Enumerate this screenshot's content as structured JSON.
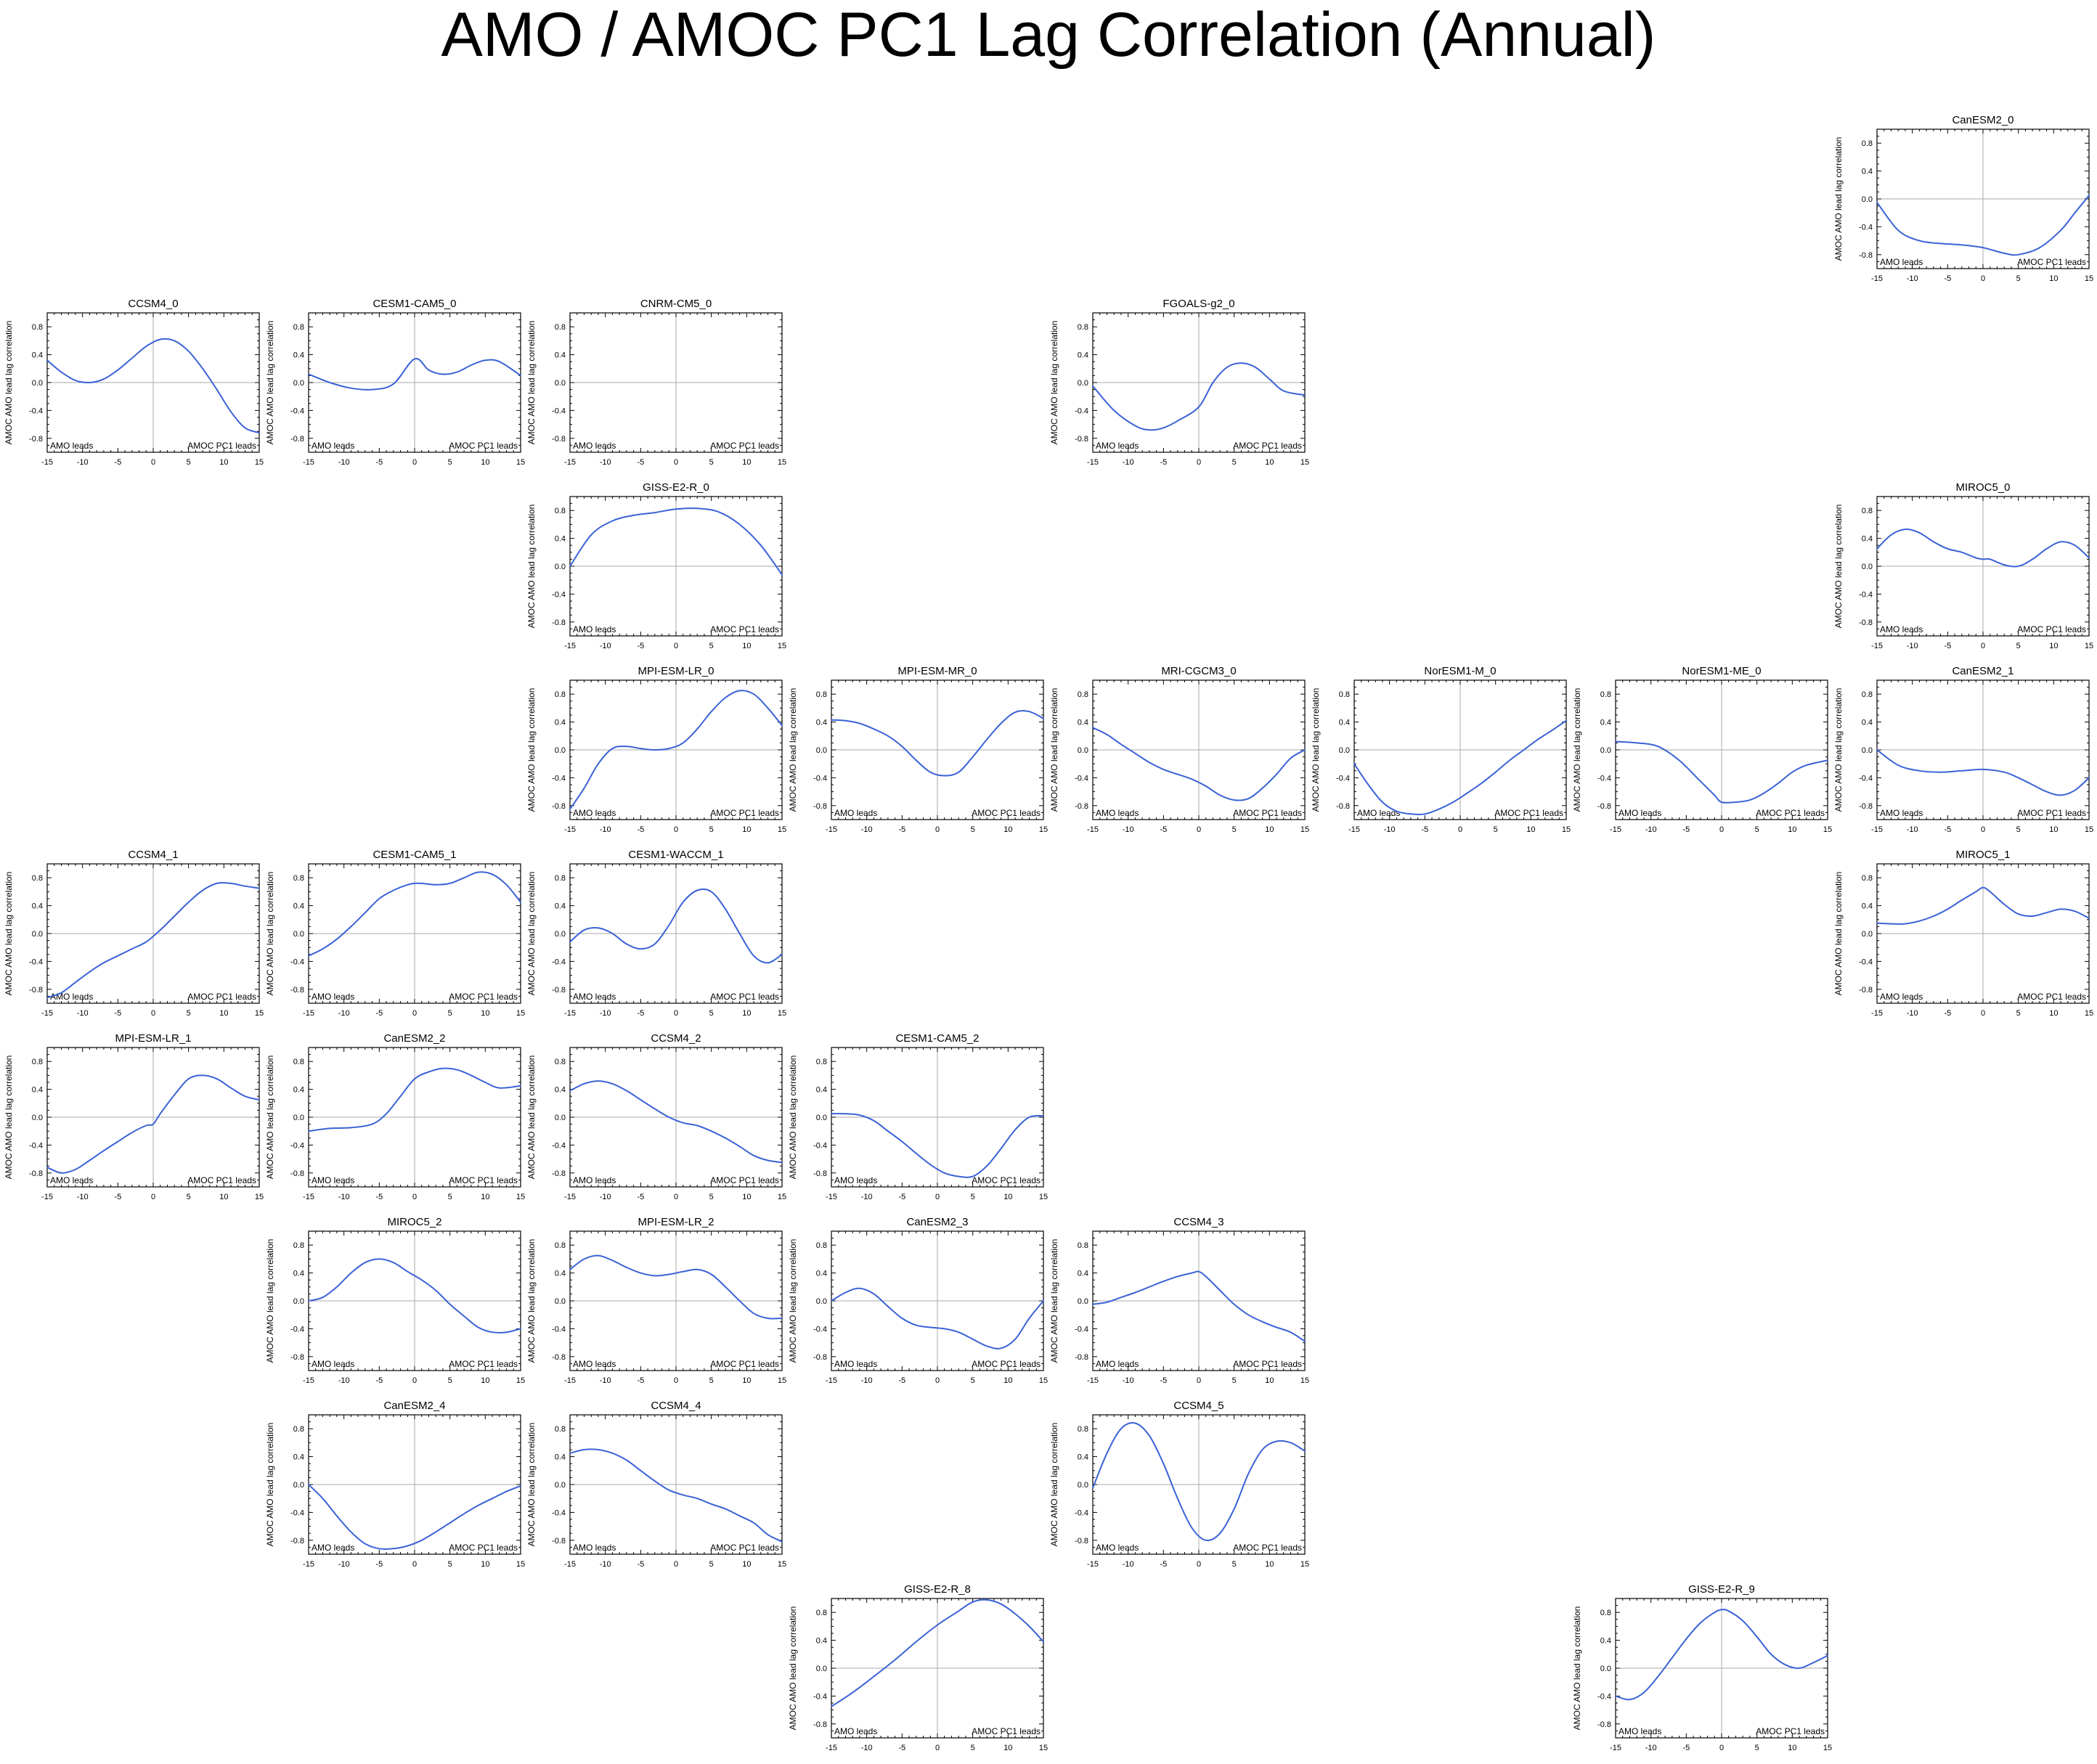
{
  "title": "AMO / AMOC PC1 Lag Correlation (Annual)",
  "chart_data": {
    "type": "line",
    "xticks": [
      -15,
      -10,
      -5,
      0,
      5,
      10,
      15
    ],
    "yticks": [
      0.8,
      0.4,
      0.0,
      -0.4,
      -0.8
    ],
    "xlim": [
      -15,
      15
    ],
    "ylim": [
      -1,
      1
    ],
    "ylabel": "AMOC AMO lead lag correlation",
    "left_note": "AMO leads",
    "right_note": "AMOC PC1 leads",
    "line_color": "#3a62d6",
    "grid_positions": [
      2888,
      2430
    ],
    "panels": [
      {
        "name": "CanESM2_0",
        "row": 0,
        "col": 7,
        "x": [
          -15,
          -12,
          -9,
          -6,
          -3,
          0,
          3,
          5,
          8,
          11,
          13,
          15
        ],
        "y": [
          -0.05,
          -0.45,
          -0.6,
          -0.64,
          -0.66,
          -0.7,
          -0.78,
          -0.8,
          -0.7,
          -0.45,
          -0.2,
          0.05
        ]
      },
      {
        "name": "CCSM4_0",
        "row": 1,
        "col": 0,
        "x": [
          -15,
          -13,
          -11,
          -9,
          -7,
          -5,
          -3,
          -1,
          1,
          3,
          5,
          7,
          9,
          11,
          13,
          15
        ],
        "y": [
          0.32,
          0.15,
          0.03,
          0.0,
          0.05,
          0.18,
          0.35,
          0.52,
          0.62,
          0.6,
          0.45,
          0.2,
          -0.1,
          -0.42,
          -0.65,
          -0.72
        ]
      },
      {
        "name": "CESM1-CAM5_0",
        "row": 1,
        "col": 1,
        "x": [
          -15,
          -12,
          -9,
          -6,
          -3,
          0,
          2,
          4,
          6,
          8,
          10,
          12,
          15
        ],
        "y": [
          0.12,
          0.0,
          -0.08,
          -0.1,
          -0.02,
          0.34,
          0.18,
          0.12,
          0.15,
          0.25,
          0.32,
          0.3,
          0.1
        ]
      },
      {
        "name": "CNRM-CM5_0",
        "row": 1,
        "col": 2,
        "x": [],
        "y": []
      },
      {
        "name": "FGOALS-g2_0",
        "row": 1,
        "col": 4,
        "x": [
          -15,
          -12,
          -9,
          -7,
          -5,
          -3,
          0,
          2,
          4,
          6,
          8,
          10,
          12,
          15
        ],
        "y": [
          -0.05,
          -0.4,
          -0.62,
          -0.68,
          -0.65,
          -0.55,
          -0.35,
          0.0,
          0.22,
          0.28,
          0.22,
          0.05,
          -0.12,
          -0.18
        ]
      },
      {
        "name": "GISS-E2-R_0",
        "row": 2,
        "col": 2,
        "x": [
          -15,
          -12,
          -9,
          -6,
          -3,
          0,
          3,
          6,
          9,
          12,
          15
        ],
        "y": [
          0.0,
          0.45,
          0.65,
          0.73,
          0.77,
          0.82,
          0.83,
          0.78,
          0.6,
          0.3,
          -0.12
        ]
      },
      {
        "name": "MIROC5_0",
        "row": 2,
        "col": 7,
        "x": [
          -15,
          -13,
          -11,
          -9,
          -7,
          -5,
          -3,
          -1,
          0,
          1,
          3,
          5,
          7,
          9,
          11,
          13,
          15
        ],
        "y": [
          0.25,
          0.45,
          0.53,
          0.48,
          0.35,
          0.25,
          0.2,
          0.12,
          0.1,
          0.1,
          0.02,
          0.0,
          0.1,
          0.25,
          0.35,
          0.3,
          0.12
        ]
      },
      {
        "name": "MPI-ESM-LR_0",
        "row": 3,
        "col": 2,
        "x": [
          -15,
          -13,
          -11,
          -9,
          -7,
          -5,
          -3,
          -1,
          1,
          3,
          5,
          7,
          9,
          11,
          13,
          15
        ],
        "y": [
          -0.85,
          -0.55,
          -0.2,
          0.02,
          0.05,
          0.02,
          0.0,
          0.02,
          0.1,
          0.3,
          0.55,
          0.75,
          0.85,
          0.8,
          0.6,
          0.35
        ]
      },
      {
        "name": "MPI-ESM-MR_0",
        "row": 3,
        "col": 3,
        "x": [
          -15,
          -13,
          -11,
          -9,
          -7,
          -5,
          -3,
          -1,
          1,
          3,
          5,
          7,
          9,
          11,
          13,
          15
        ],
        "y": [
          0.43,
          0.42,
          0.38,
          0.3,
          0.2,
          0.05,
          -0.15,
          -0.32,
          -0.37,
          -0.32,
          -0.1,
          0.15,
          0.38,
          0.54,
          0.55,
          0.45
        ]
      },
      {
        "name": "MRI-CGCM3_0",
        "row": 3,
        "col": 4,
        "x": [
          -15,
          -13,
          -11,
          -9,
          -7,
          -5,
          -3,
          -1,
          1,
          3,
          5,
          7,
          9,
          11,
          13,
          15
        ],
        "y": [
          0.32,
          0.22,
          0.08,
          -0.05,
          -0.18,
          -0.28,
          -0.35,
          -0.42,
          -0.52,
          -0.65,
          -0.72,
          -0.7,
          -0.55,
          -0.35,
          -0.12,
          0.0
        ]
      },
      {
        "name": "NorESM1-M_0",
        "row": 3,
        "col": 5,
        "x": [
          -15,
          -13,
          -11,
          -9,
          -7,
          -5,
          -3,
          -1,
          1,
          3,
          5,
          7,
          9,
          11,
          13,
          15
        ],
        "y": [
          -0.2,
          -0.5,
          -0.75,
          -0.88,
          -0.92,
          -0.92,
          -0.85,
          -0.75,
          -0.62,
          -0.48,
          -0.32,
          -0.15,
          0.0,
          0.15,
          0.28,
          0.42
        ]
      },
      {
        "name": "NorESM1-ME_0",
        "row": 3,
        "col": 6,
        "x": [
          -15,
          -12,
          -9,
          -6,
          -3,
          -1,
          0,
          2,
          4,
          6,
          8,
          10,
          12,
          15
        ],
        "y": [
          0.12,
          0.1,
          0.05,
          -0.15,
          -0.45,
          -0.65,
          -0.75,
          -0.75,
          -0.72,
          -0.62,
          -0.48,
          -0.32,
          -0.22,
          -0.15
        ]
      },
      {
        "name": "CanESM2_1",
        "row": 3,
        "col": 7,
        "x": [
          -15,
          -12,
          -9,
          -6,
          -3,
          0,
          3,
          5,
          7,
          9,
          11,
          13,
          15
        ],
        "y": [
          0.0,
          -0.22,
          -0.3,
          -0.32,
          -0.3,
          -0.28,
          -0.32,
          -0.4,
          -0.5,
          -0.6,
          -0.65,
          -0.58,
          -0.4
        ]
      },
      {
        "name": "CCSM4_1",
        "row": 4,
        "col": 0,
        "x": [
          -15,
          -13,
          -11,
          -9,
          -7,
          -5,
          -3,
          -1,
          1,
          3,
          5,
          7,
          9,
          11,
          13,
          15
        ],
        "y": [
          -0.92,
          -0.85,
          -0.7,
          -0.55,
          -0.42,
          -0.32,
          -0.22,
          -0.12,
          0.05,
          0.25,
          0.45,
          0.62,
          0.72,
          0.72,
          0.68,
          0.65
        ]
      },
      {
        "name": "CESM1-CAM5_1",
        "row": 4,
        "col": 1,
        "x": [
          -15,
          -13,
          -11,
          -9,
          -7,
          -5,
          -3,
          -1,
          0,
          1,
          3,
          5,
          7,
          9,
          11,
          13,
          15
        ],
        "y": [
          -0.32,
          -0.22,
          -0.08,
          0.1,
          0.3,
          0.5,
          0.62,
          0.7,
          0.72,
          0.72,
          0.7,
          0.72,
          0.8,
          0.88,
          0.85,
          0.7,
          0.45
        ]
      },
      {
        "name": "CESM1-WACCM_1",
        "row": 4,
        "col": 2,
        "x": [
          -15,
          -13,
          -11,
          -9,
          -7,
          -5,
          -3,
          -1,
          1,
          3,
          5,
          7,
          9,
          11,
          13,
          15
        ],
        "y": [
          -0.12,
          0.05,
          0.08,
          0.0,
          -0.15,
          -0.22,
          -0.15,
          0.12,
          0.45,
          0.62,
          0.6,
          0.35,
          0.0,
          -0.32,
          -0.42,
          -0.3
        ]
      },
      {
        "name": "MIROC5_1",
        "row": 4,
        "col": 7,
        "x": [
          -15,
          -13,
          -11,
          -9,
          -7,
          -5,
          -3,
          -1,
          0,
          1,
          3,
          5,
          7,
          9,
          11,
          13,
          15
        ],
        "y": [
          0.15,
          0.14,
          0.14,
          0.18,
          0.25,
          0.35,
          0.48,
          0.6,
          0.66,
          0.6,
          0.42,
          0.28,
          0.25,
          0.3,
          0.35,
          0.32,
          0.22
        ]
      },
      {
        "name": "MPI-ESM-LR_1",
        "row": 5,
        "col": 0,
        "x": [
          -15,
          -13,
          -11,
          -9,
          -7,
          -5,
          -3,
          -1,
          0,
          1,
          3,
          5,
          7,
          9,
          11,
          13,
          15
        ],
        "y": [
          -0.72,
          -0.8,
          -0.75,
          -0.62,
          -0.48,
          -0.35,
          -0.22,
          -0.12,
          -0.1,
          0.05,
          0.32,
          0.55,
          0.6,
          0.55,
          0.42,
          0.3,
          0.25
        ]
      },
      {
        "name": "CanESM2_2",
        "row": 5,
        "col": 1,
        "x": [
          -15,
          -12,
          -9,
          -6,
          -4,
          -2,
          0,
          2,
          4,
          6,
          8,
          10,
          12,
          15
        ],
        "y": [
          -0.2,
          -0.16,
          -0.15,
          -0.1,
          0.05,
          0.3,
          0.55,
          0.65,
          0.7,
          0.68,
          0.6,
          0.5,
          0.42,
          0.45
        ]
      },
      {
        "name": "CCSM4_2",
        "row": 5,
        "col": 2,
        "x": [
          -15,
          -13,
          -11,
          -9,
          -7,
          -5,
          -3,
          -1,
          1,
          3,
          5,
          7,
          9,
          11,
          13,
          15
        ],
        "y": [
          0.38,
          0.48,
          0.52,
          0.48,
          0.38,
          0.25,
          0.12,
          0.0,
          -0.08,
          -0.12,
          -0.2,
          -0.3,
          -0.42,
          -0.55,
          -0.62,
          -0.65
        ]
      },
      {
        "name": "CESM1-CAM5_2",
        "row": 5,
        "col": 3,
        "x": [
          -15,
          -13,
          -11,
          -9,
          -7,
          -5,
          -3,
          -1,
          1,
          3,
          5,
          7,
          9,
          11,
          13,
          15
        ],
        "y": [
          0.05,
          0.05,
          0.03,
          -0.05,
          -0.2,
          -0.35,
          -0.52,
          -0.68,
          -0.8,
          -0.85,
          -0.85,
          -0.7,
          -0.45,
          -0.18,
          0.0,
          0.02
        ]
      },
      {
        "name": "MIROC5_2",
        "row": 6,
        "col": 1,
        "x": [
          -15,
          -13,
          -11,
          -9,
          -7,
          -5,
          -3,
          -1,
          1,
          3,
          5,
          7,
          9,
          11,
          13,
          15
        ],
        "y": [
          0.0,
          0.05,
          0.2,
          0.4,
          0.55,
          0.6,
          0.55,
          0.42,
          0.3,
          0.15,
          -0.05,
          -0.22,
          -0.38,
          -0.45,
          -0.45,
          -0.4
        ]
      },
      {
        "name": "MPI-ESM-LR_2",
        "row": 6,
        "col": 2,
        "x": [
          -15,
          -13,
          -11,
          -9,
          -7,
          -5,
          -3,
          -1,
          1,
          3,
          5,
          7,
          9,
          11,
          13,
          15
        ],
        "y": [
          0.45,
          0.6,
          0.65,
          0.58,
          0.48,
          0.4,
          0.36,
          0.38,
          0.42,
          0.45,
          0.38,
          0.2,
          0.0,
          -0.18,
          -0.25,
          -0.25
        ]
      },
      {
        "name": "CanESM2_3",
        "row": 6,
        "col": 3,
        "x": [
          -15,
          -13,
          -11,
          -9,
          -7,
          -5,
          -3,
          -1,
          1,
          3,
          5,
          7,
          9,
          11,
          13,
          15
        ],
        "y": [
          0.0,
          0.12,
          0.18,
          0.1,
          -0.08,
          -0.25,
          -0.35,
          -0.38,
          -0.4,
          -0.45,
          -0.55,
          -0.65,
          -0.68,
          -0.55,
          -0.25,
          0.0
        ]
      },
      {
        "name": "CCSM4_3",
        "row": 6,
        "col": 4,
        "x": [
          -15,
          -13,
          -11,
          -9,
          -7,
          -5,
          -3,
          -1,
          0,
          1,
          3,
          5,
          7,
          9,
          11,
          13,
          15
        ],
        "y": [
          -0.05,
          -0.02,
          0.05,
          0.12,
          0.2,
          0.28,
          0.35,
          0.4,
          0.42,
          0.35,
          0.15,
          -0.05,
          -0.2,
          -0.3,
          -0.38,
          -0.45,
          -0.58
        ]
      },
      {
        "name": "CanESM2_4",
        "row": 7,
        "col": 1,
        "x": [
          -15,
          -13,
          -11,
          -9,
          -7,
          -5,
          -3,
          -1,
          1,
          3,
          5,
          7,
          9,
          11,
          13,
          15
        ],
        "y": [
          0.0,
          -0.2,
          -0.45,
          -0.68,
          -0.85,
          -0.92,
          -0.92,
          -0.88,
          -0.8,
          -0.68,
          -0.55,
          -0.42,
          -0.3,
          -0.2,
          -0.1,
          -0.02
        ]
      },
      {
        "name": "CCSM4_4",
        "row": 7,
        "col": 2,
        "x": [
          -15,
          -13,
          -11,
          -9,
          -7,
          -5,
          -3,
          -1,
          1,
          3,
          5,
          7,
          9,
          11,
          13,
          15
        ],
        "y": [
          0.45,
          0.5,
          0.5,
          0.45,
          0.35,
          0.2,
          0.05,
          -0.08,
          -0.15,
          -0.2,
          -0.28,
          -0.35,
          -0.45,
          -0.55,
          -0.72,
          -0.82
        ]
      },
      {
        "name": "CCSM4_5",
        "row": 7,
        "col": 4,
        "x": [
          -15,
          -13,
          -11,
          -9,
          -7,
          -5,
          -3,
          -1,
          1,
          3,
          5,
          7,
          9,
          11,
          13,
          15
        ],
        "y": [
          -0.05,
          0.45,
          0.8,
          0.88,
          0.7,
          0.3,
          -0.2,
          -0.62,
          -0.8,
          -0.7,
          -0.35,
          0.15,
          0.5,
          0.62,
          0.6,
          0.48
        ]
      },
      {
        "name": "GISS-E2-R_8",
        "row": 8,
        "col": 3,
        "x": [
          -15,
          -12,
          -9,
          -6,
          -3,
          0,
          3,
          5,
          7,
          9,
          11,
          13,
          15
        ],
        "y": [
          -0.55,
          -0.35,
          -0.12,
          0.12,
          0.38,
          0.62,
          0.82,
          0.95,
          0.98,
          0.92,
          0.78,
          0.6,
          0.38
        ]
      },
      {
        "name": "GISS-E2-R_9",
        "row": 8,
        "col": 6,
        "x": [
          -15,
          -13,
          -11,
          -9,
          -7,
          -5,
          -3,
          -1,
          0,
          1,
          3,
          5,
          7,
          9,
          11,
          13,
          15
        ],
        "y": [
          -0.4,
          -0.45,
          -0.35,
          -0.12,
          0.15,
          0.42,
          0.65,
          0.8,
          0.84,
          0.82,
          0.68,
          0.45,
          0.2,
          0.05,
          0.0,
          0.08,
          0.18
        ]
      }
    ]
  }
}
